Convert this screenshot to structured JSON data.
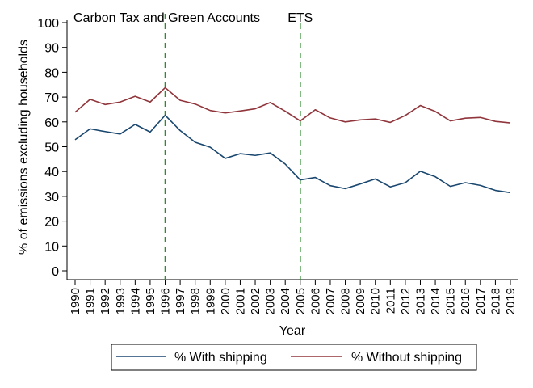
{
  "chart_data": {
    "type": "line",
    "title": "",
    "xlabel": "Year",
    "ylabel": "% of emissions excluding households",
    "xlim": [
      1990,
      2019
    ],
    "ylim": [
      0,
      100
    ],
    "yticks": [
      0,
      10,
      20,
      30,
      40,
      50,
      60,
      70,
      80,
      90,
      100
    ],
    "grid": false,
    "legend_position": "bottom",
    "x": [
      1990,
      1991,
      1992,
      1993,
      1994,
      1995,
      1996,
      1997,
      1998,
      1999,
      2000,
      2001,
      2002,
      2003,
      2004,
      2005,
      2006,
      2007,
      2008,
      2009,
      2010,
      2011,
      2012,
      2013,
      2014,
      2015,
      2016,
      2017,
      2018,
      2019
    ],
    "x_tick_labels": [
      "1990",
      "1991",
      "1992",
      "1993",
      "1994",
      "1995",
      "1996",
      "1997",
      "1998",
      "1999",
      "2000",
      "2001",
      "2002",
      "2003",
      "2004",
      "2005",
      "2006",
      "2007",
      "2008",
      "2009",
      "2010",
      "2011",
      "2012",
      "2013",
      "2014",
      "2015",
      "2016",
      "2017",
      "2018",
      "2019"
    ],
    "series": [
      {
        "name": "% With shipping",
        "color": "#1a476f",
        "values": [
          52.8,
          57.2,
          56.1,
          55.1,
          59.0,
          55.9,
          62.7,
          56.5,
          51.8,
          49.8,
          45.3,
          47.2,
          46.5,
          47.5,
          43.0,
          36.6,
          37.6,
          34.3,
          33.1,
          35.0,
          37.0,
          33.8,
          35.5,
          40.1,
          37.9,
          34.0,
          35.5,
          34.4,
          32.4,
          31.5
        ]
      },
      {
        "name": "% Without shipping",
        "color": "#90353b",
        "values": [
          63.9,
          69.1,
          67.0,
          68.0,
          70.3,
          68.0,
          73.8,
          68.7,
          67.2,
          64.6,
          63.6,
          64.4,
          65.3,
          67.8,
          64.3,
          60.4,
          64.9,
          61.6,
          60.0,
          60.8,
          61.2,
          59.8,
          62.6,
          66.6,
          64.2,
          60.4,
          61.5,
          61.8,
          60.2,
          59.6
        ]
      }
    ],
    "annotations": [
      {
        "x": 1996,
        "label": "Carbon Tax and Green Accounts",
        "color": "#2e8b2e",
        "style": "dashed"
      },
      {
        "x": 2005,
        "label": "ETS",
        "color": "#2e8b2e",
        "style": "dashed"
      }
    ]
  }
}
